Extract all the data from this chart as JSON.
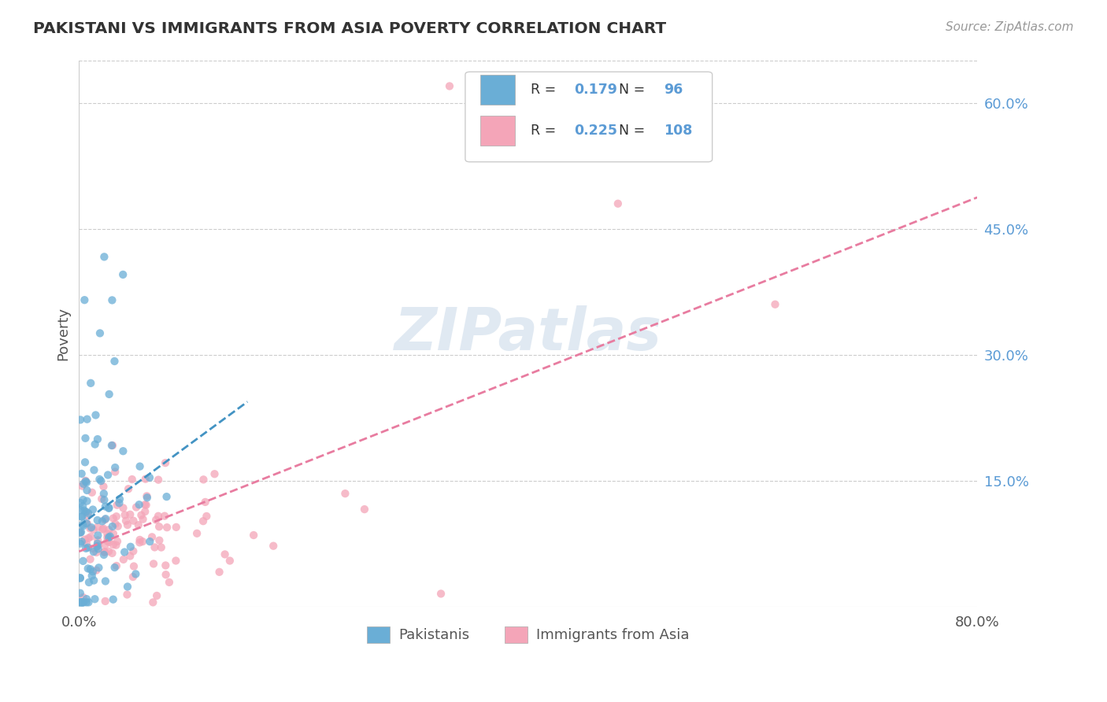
{
  "title": "PAKISTANI VS IMMIGRANTS FROM ASIA POVERTY CORRELATION CHART",
  "source": "Source: ZipAtlas.com",
  "ylabel": "Poverty",
  "right_yticks": [
    0.15,
    0.3,
    0.45,
    0.6
  ],
  "right_ytick_labels": [
    "15.0%",
    "30.0%",
    "45.0%",
    "60.0%"
  ],
  "legend_labels": [
    "Pakistanis",
    "Immigrants from Asia"
  ],
  "legend_r": [
    0.179,
    0.225
  ],
  "legend_n": [
    96,
    108
  ],
  "blue_color": "#6aaed6",
  "pink_color": "#f4a5b8",
  "blue_line_color": "#4393c3",
  "pink_line_color": "#e87ca0",
  "watermark": "ZIPatlas",
  "xlim": [
    0,
    0.8
  ],
  "ylim": [
    0,
    0.65
  ]
}
